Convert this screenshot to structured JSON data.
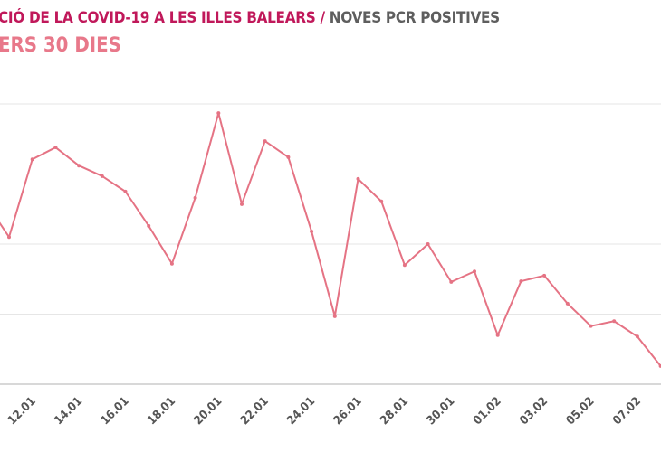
{
  "header": {
    "title_main": "CIÓ DE LA COVID-19 A LES ILLES BALEARS",
    "title_sep": " / ",
    "title_metric": "NOVES PCR POSITIVES",
    "subtitle": "ERS 30 DIES"
  },
  "colors": {
    "title": "#c0185a",
    "metric": "#5e5e5e",
    "subtitle": "#e8788a",
    "line": "#e57384",
    "grid": "#e6e6e6",
    "axis": "#cccccc"
  },
  "chart_data": {
    "type": "line",
    "title": "NOVES PCR POSITIVES",
    "xlabel": "",
    "ylabel": "",
    "ylim": [
      0,
      400
    ],
    "grid": true,
    "gridlines": [
      0,
      100,
      200,
      300,
      400
    ],
    "x": [
      "10.01",
      "11.01",
      "12.01",
      "13.01",
      "14.01",
      "15.01",
      "16.01",
      "17.01",
      "18.01",
      "19.01",
      "20.01",
      "21.01",
      "22.01",
      "23.01",
      "24.01",
      "25.01",
      "26.01",
      "27.01",
      "28.01",
      "29.01",
      "30.01",
      "31.01",
      "01.02",
      "02.02",
      "03.02",
      "04.02",
      "05.02",
      "06.02",
      "07.02",
      "08.02"
    ],
    "tick_labels": [
      "12.01",
      "14.01",
      "16.01",
      "18.01",
      "20.01",
      "22.01",
      "24.01",
      "26.01",
      "28.01",
      "30.01",
      "01.02",
      "03.02",
      "05.02",
      "07.02"
    ],
    "series": [
      {
        "name": "Noves PCR positives",
        "values": [
          260,
          210,
          321,
          338,
          312,
          297,
          275,
          226,
          172,
          266,
          387,
          257,
          347,
          324,
          218,
          97,
          293,
          261,
          170,
          200,
          146,
          161,
          70,
          147,
          155,
          115,
          83,
          90,
          68,
          26
        ]
      }
    ]
  }
}
